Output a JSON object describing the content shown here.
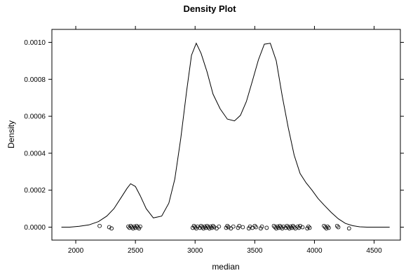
{
  "chart_data": {
    "type": "line",
    "title": "Density Plot",
    "xlabel": "median",
    "ylabel": "Density",
    "xlim": [
      1800,
      4720
    ],
    "ylim": [
      -7e-05,
      0.00107
    ],
    "x_ticks": [
      2000,
      2500,
      3000,
      3500,
      4000,
      4500
    ],
    "x_tick_labels": [
      "2000",
      "2500",
      "3000",
      "3500",
      "4000",
      "4500"
    ],
    "y_ticks": [
      0,
      0.0002,
      0.0004,
      0.0006,
      0.0008,
      0.001
    ],
    "y_tick_labels": [
      "0.0000",
      "0.0002",
      "0.0004",
      "0.0006",
      "0.0008",
      "0.0010"
    ],
    "grid": false,
    "series": [
      {
        "x": [
          1880,
          1950,
          2030,
          2110,
          2190,
          2260,
          2320,
          2380,
          2430,
          2460,
          2500,
          2540,
          2590,
          2650,
          2720,
          2780,
          2830,
          2880,
          2930,
          2970,
          3010,
          3050,
          3100,
          3150,
          3210,
          3270,
          3330,
          3380,
          3430,
          3480,
          3530,
          3580,
          3630,
          3680,
          3730,
          3780,
          3830,
          3880,
          3930,
          3980,
          4030,
          4080,
          4140,
          4200,
          4260,
          4320,
          4380,
          4440,
          4500,
          4560,
          4630
        ],
        "y": [
          0.0,
          0.0,
          5e-06,
          1.2e-05,
          3e-05,
          6e-05,
          0.0001,
          0.00016,
          0.00021,
          0.000235,
          0.00022,
          0.00017,
          0.0001,
          5e-05,
          6e-05,
          0.00013,
          0.00026,
          0.00048,
          0.00074,
          0.00093,
          0.000995,
          0.00094,
          0.00084,
          0.00072,
          0.00064,
          0.000585,
          0.000575,
          0.000605,
          0.00068,
          0.00079,
          0.000905,
          0.00099,
          0.000995,
          0.0009,
          0.00071,
          0.00054,
          0.00039,
          0.00029,
          0.00024,
          0.0002,
          0.000155,
          0.00012,
          8e-05,
          4.5e-05,
          2e-05,
          8e-06,
          2e-06,
          0.0,
          0.0,
          0.0,
          0.0
        ]
      }
    ],
    "rug": [
      2200,
      2280,
      2300,
      2440,
      2450,
      2460,
      2470,
      2480,
      2490,
      2500,
      2510,
      2520,
      2530,
      2540,
      2980,
      2990,
      3000,
      3010,
      3020,
      3040,
      3050,
      3060,
      3070,
      3080,
      3090,
      3100,
      3110,
      3120,
      3130,
      3140,
      3150,
      3160,
      3180,
      3200,
      3260,
      3270,
      3280,
      3300,
      3320,
      3360,
      3370,
      3400,
      3450,
      3460,
      3480,
      3500,
      3510,
      3550,
      3560,
      3600,
      3660,
      3670,
      3680,
      3690,
      3700,
      3710,
      3720,
      3730,
      3740,
      3760,
      3770,
      3780,
      3790,
      3800,
      3810,
      3820,
      3830,
      3840,
      3860,
      3870,
      3880,
      3900,
      3940,
      3950,
      3960,
      4080,
      4090,
      4100,
      4110,
      4120,
      4190,
      4200,
      4290
    ]
  }
}
